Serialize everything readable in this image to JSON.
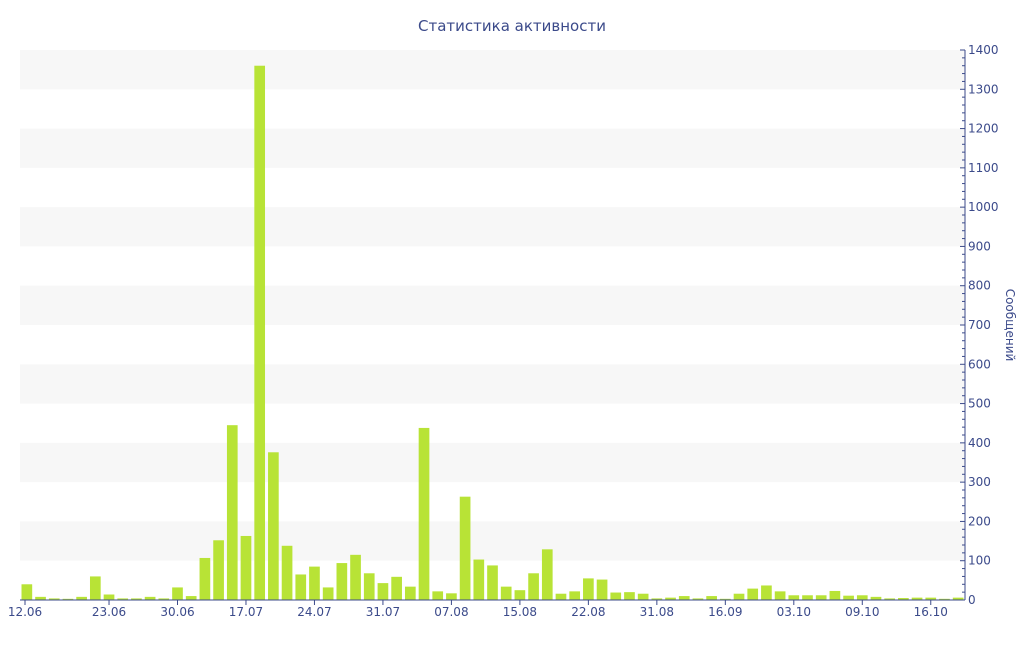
{
  "chart_data": {
    "type": "bar",
    "title": "Статистика активности",
    "xlabel": "",
    "ylabel": "Сообщений",
    "ylim": [
      0,
      1400
    ],
    "y_ticks": [
      0,
      100,
      200,
      300,
      400,
      500,
      600,
      700,
      800,
      900,
      1000,
      1100,
      1200,
      1300,
      1400
    ],
    "y_axis_side": "right",
    "x_tick_labels": [
      "12.06",
      "23.06",
      "30.06",
      "17.07",
      "24.07",
      "31.07",
      "07.08",
      "15.08",
      "22.08",
      "31.08",
      "16.09",
      "03.10",
      "09.10",
      "16.10"
    ],
    "x_tick_positions": [
      0,
      6,
      11,
      16,
      21,
      26,
      31,
      36,
      41,
      46,
      51,
      56,
      61,
      66
    ],
    "grid": "alternating horizontal bands",
    "legend": "none",
    "colors": {
      "bar": "#b8e336",
      "band": "#f7f7f7",
      "axis": "#3b4a8a"
    },
    "values": [
      40,
      8,
      4,
      3,
      8,
      60,
      14,
      4,
      4,
      8,
      4,
      32,
      10,
      107,
      152,
      445,
      163,
      1360,
      376,
      138,
      65,
      85,
      32,
      94,
      115,
      68,
      43,
      59,
      34,
      438,
      22,
      17,
      263,
      103,
      88,
      34,
      25,
      68,
      129,
      16,
      22,
      55,
      52,
      19,
      20,
      16,
      4,
      6,
      10,
      4,
      10,
      3,
      16,
      29,
      37,
      22,
      12,
      12,
      12,
      23,
      11,
      12,
      8,
      4,
      5,
      6,
      6,
      3,
      6
    ]
  }
}
